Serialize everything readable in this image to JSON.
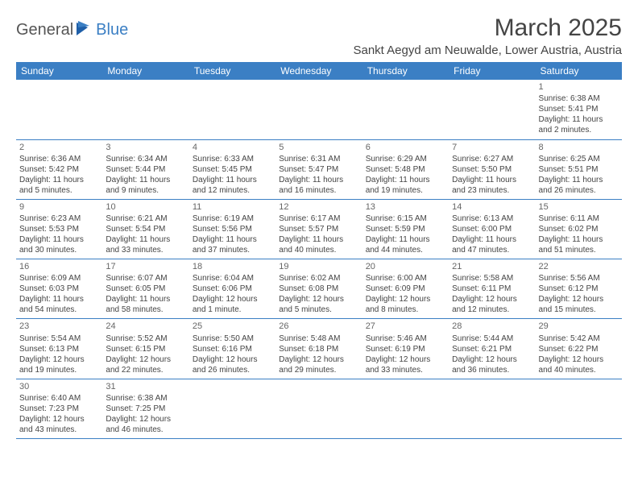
{
  "logo": {
    "part1": "General",
    "part2": "Blue"
  },
  "title": "March 2025",
  "location": "Sankt Aegyd am Neuwalde, Lower Austria, Austria",
  "dayHeaders": [
    "Sunday",
    "Monday",
    "Tuesday",
    "Wednesday",
    "Thursday",
    "Friday",
    "Saturday"
  ],
  "colors": {
    "headerBg": "#3b7fc4",
    "headerText": "#ffffff",
    "border": "#3b7fc4",
    "text": "#444444"
  },
  "weeks": [
    [
      null,
      null,
      null,
      null,
      null,
      null,
      {
        "d": "1",
        "sr": "Sunrise: 6:38 AM",
        "ss": "Sunset: 5:41 PM",
        "dl1": "Daylight: 11 hours",
        "dl2": "and 2 minutes."
      }
    ],
    [
      {
        "d": "2",
        "sr": "Sunrise: 6:36 AM",
        "ss": "Sunset: 5:42 PM",
        "dl1": "Daylight: 11 hours",
        "dl2": "and 5 minutes."
      },
      {
        "d": "3",
        "sr": "Sunrise: 6:34 AM",
        "ss": "Sunset: 5:44 PM",
        "dl1": "Daylight: 11 hours",
        "dl2": "and 9 minutes."
      },
      {
        "d": "4",
        "sr": "Sunrise: 6:33 AM",
        "ss": "Sunset: 5:45 PM",
        "dl1": "Daylight: 11 hours",
        "dl2": "and 12 minutes."
      },
      {
        "d": "5",
        "sr": "Sunrise: 6:31 AM",
        "ss": "Sunset: 5:47 PM",
        "dl1": "Daylight: 11 hours",
        "dl2": "and 16 minutes."
      },
      {
        "d": "6",
        "sr": "Sunrise: 6:29 AM",
        "ss": "Sunset: 5:48 PM",
        "dl1": "Daylight: 11 hours",
        "dl2": "and 19 minutes."
      },
      {
        "d": "7",
        "sr": "Sunrise: 6:27 AM",
        "ss": "Sunset: 5:50 PM",
        "dl1": "Daylight: 11 hours",
        "dl2": "and 23 minutes."
      },
      {
        "d": "8",
        "sr": "Sunrise: 6:25 AM",
        "ss": "Sunset: 5:51 PM",
        "dl1": "Daylight: 11 hours",
        "dl2": "and 26 minutes."
      }
    ],
    [
      {
        "d": "9",
        "sr": "Sunrise: 6:23 AM",
        "ss": "Sunset: 5:53 PM",
        "dl1": "Daylight: 11 hours",
        "dl2": "and 30 minutes."
      },
      {
        "d": "10",
        "sr": "Sunrise: 6:21 AM",
        "ss": "Sunset: 5:54 PM",
        "dl1": "Daylight: 11 hours",
        "dl2": "and 33 minutes."
      },
      {
        "d": "11",
        "sr": "Sunrise: 6:19 AM",
        "ss": "Sunset: 5:56 PM",
        "dl1": "Daylight: 11 hours",
        "dl2": "and 37 minutes."
      },
      {
        "d": "12",
        "sr": "Sunrise: 6:17 AM",
        "ss": "Sunset: 5:57 PM",
        "dl1": "Daylight: 11 hours",
        "dl2": "and 40 minutes."
      },
      {
        "d": "13",
        "sr": "Sunrise: 6:15 AM",
        "ss": "Sunset: 5:59 PM",
        "dl1": "Daylight: 11 hours",
        "dl2": "and 44 minutes."
      },
      {
        "d": "14",
        "sr": "Sunrise: 6:13 AM",
        "ss": "Sunset: 6:00 PM",
        "dl1": "Daylight: 11 hours",
        "dl2": "and 47 minutes."
      },
      {
        "d": "15",
        "sr": "Sunrise: 6:11 AM",
        "ss": "Sunset: 6:02 PM",
        "dl1": "Daylight: 11 hours",
        "dl2": "and 51 minutes."
      }
    ],
    [
      {
        "d": "16",
        "sr": "Sunrise: 6:09 AM",
        "ss": "Sunset: 6:03 PM",
        "dl1": "Daylight: 11 hours",
        "dl2": "and 54 minutes."
      },
      {
        "d": "17",
        "sr": "Sunrise: 6:07 AM",
        "ss": "Sunset: 6:05 PM",
        "dl1": "Daylight: 11 hours",
        "dl2": "and 58 minutes."
      },
      {
        "d": "18",
        "sr": "Sunrise: 6:04 AM",
        "ss": "Sunset: 6:06 PM",
        "dl1": "Daylight: 12 hours",
        "dl2": "and 1 minute."
      },
      {
        "d": "19",
        "sr": "Sunrise: 6:02 AM",
        "ss": "Sunset: 6:08 PM",
        "dl1": "Daylight: 12 hours",
        "dl2": "and 5 minutes."
      },
      {
        "d": "20",
        "sr": "Sunrise: 6:00 AM",
        "ss": "Sunset: 6:09 PM",
        "dl1": "Daylight: 12 hours",
        "dl2": "and 8 minutes."
      },
      {
        "d": "21",
        "sr": "Sunrise: 5:58 AM",
        "ss": "Sunset: 6:11 PM",
        "dl1": "Daylight: 12 hours",
        "dl2": "and 12 minutes."
      },
      {
        "d": "22",
        "sr": "Sunrise: 5:56 AM",
        "ss": "Sunset: 6:12 PM",
        "dl1": "Daylight: 12 hours",
        "dl2": "and 15 minutes."
      }
    ],
    [
      {
        "d": "23",
        "sr": "Sunrise: 5:54 AM",
        "ss": "Sunset: 6:13 PM",
        "dl1": "Daylight: 12 hours",
        "dl2": "and 19 minutes."
      },
      {
        "d": "24",
        "sr": "Sunrise: 5:52 AM",
        "ss": "Sunset: 6:15 PM",
        "dl1": "Daylight: 12 hours",
        "dl2": "and 22 minutes."
      },
      {
        "d": "25",
        "sr": "Sunrise: 5:50 AM",
        "ss": "Sunset: 6:16 PM",
        "dl1": "Daylight: 12 hours",
        "dl2": "and 26 minutes."
      },
      {
        "d": "26",
        "sr": "Sunrise: 5:48 AM",
        "ss": "Sunset: 6:18 PM",
        "dl1": "Daylight: 12 hours",
        "dl2": "and 29 minutes."
      },
      {
        "d": "27",
        "sr": "Sunrise: 5:46 AM",
        "ss": "Sunset: 6:19 PM",
        "dl1": "Daylight: 12 hours",
        "dl2": "and 33 minutes."
      },
      {
        "d": "28",
        "sr": "Sunrise: 5:44 AM",
        "ss": "Sunset: 6:21 PM",
        "dl1": "Daylight: 12 hours",
        "dl2": "and 36 minutes."
      },
      {
        "d": "29",
        "sr": "Sunrise: 5:42 AM",
        "ss": "Sunset: 6:22 PM",
        "dl1": "Daylight: 12 hours",
        "dl2": "and 40 minutes."
      }
    ],
    [
      {
        "d": "30",
        "sr": "Sunrise: 6:40 AM",
        "ss": "Sunset: 7:23 PM",
        "dl1": "Daylight: 12 hours",
        "dl2": "and 43 minutes."
      },
      {
        "d": "31",
        "sr": "Sunrise: 6:38 AM",
        "ss": "Sunset: 7:25 PM",
        "dl1": "Daylight: 12 hours",
        "dl2": "and 46 minutes."
      },
      null,
      null,
      null,
      null,
      null
    ]
  ]
}
